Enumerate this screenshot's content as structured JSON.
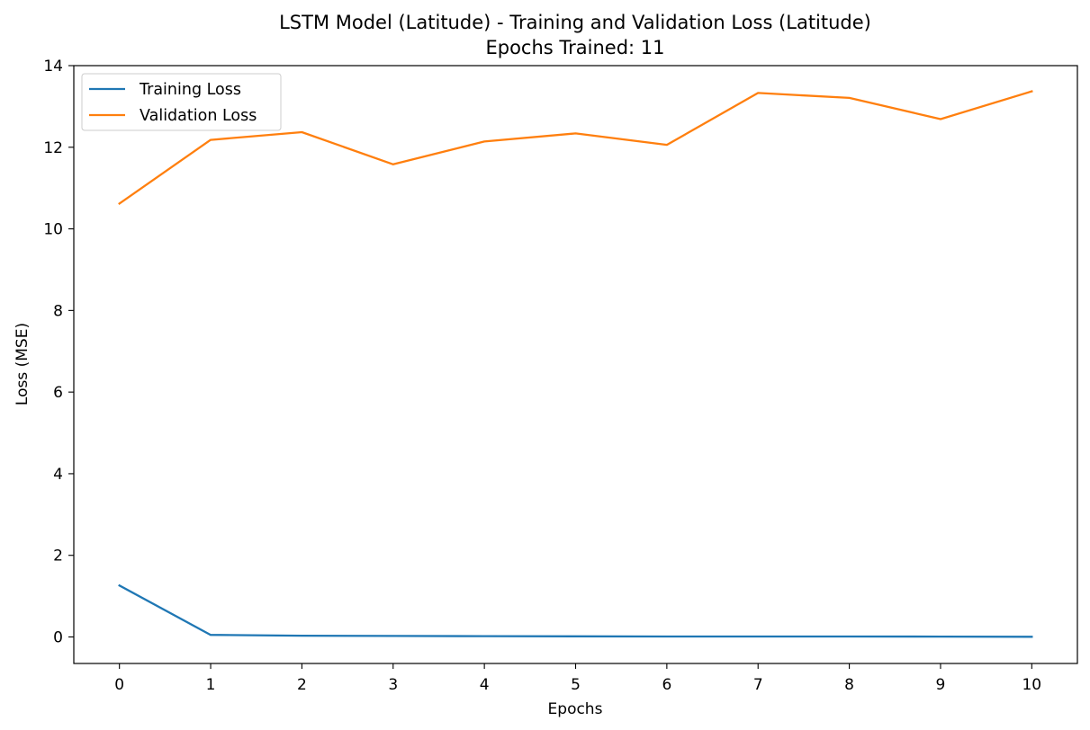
{
  "chart_data": {
    "type": "line",
    "title": "LSTM Model (Latitude) - Training and Validation Loss (Latitude)",
    "subtitle": "Epochs Trained: 11",
    "xlabel": "Epochs",
    "ylabel": "Loss (MSE)",
    "x": [
      0,
      1,
      2,
      3,
      4,
      5,
      6,
      7,
      8,
      9,
      10
    ],
    "xlim": [
      -0.5,
      10.5
    ],
    "ylim": [
      -0.65,
      14
    ],
    "xticks": [
      0,
      1,
      2,
      3,
      4,
      5,
      6,
      7,
      8,
      9,
      10
    ],
    "yticks": [
      0,
      2,
      4,
      6,
      8,
      10,
      12,
      14
    ],
    "grid": false,
    "legend": "top-left",
    "series": [
      {
        "name": "Training Loss",
        "color": "#1f77b4",
        "values": [
          1.26,
          0.05,
          0.03,
          0.025,
          0.02,
          0.015,
          0.012,
          0.01,
          0.01,
          0.008,
          0.005
        ]
      },
      {
        "name": "Validation Loss",
        "color": "#ff7f0e",
        "values": [
          10.62,
          12.18,
          12.37,
          11.58,
          12.14,
          12.34,
          12.06,
          13.33,
          13.21,
          12.69,
          13.37
        ]
      }
    ]
  }
}
